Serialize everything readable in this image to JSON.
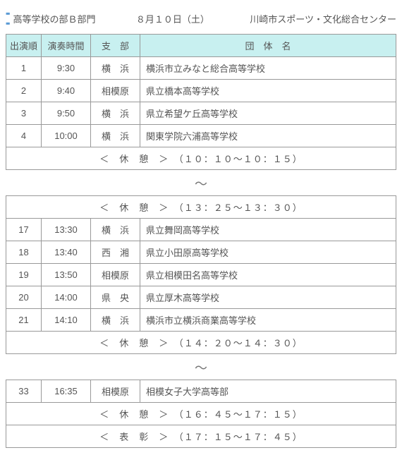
{
  "header": {
    "title": "高等学校の部Ｂ部門",
    "date": "８月１０日（土）",
    "venue": "川崎市スポーツ・文化総合センター"
  },
  "columns": {
    "order": "出演順",
    "time": "演奏時間",
    "branch": "支　部",
    "name": "団　体　名"
  },
  "block1": {
    "rows": [
      {
        "order": "1",
        "time": "9:30",
        "branch": "横　浜",
        "name": "横浜市立みなと総合高等学校"
      },
      {
        "order": "2",
        "time": "9:40",
        "branch": "相模原",
        "name": "県立橋本高等学校"
      },
      {
        "order": "3",
        "time": "9:50",
        "branch": "横　浜",
        "name": "県立希望ケ丘高等学校"
      },
      {
        "order": "4",
        "time": "10:00",
        "branch": "横　浜",
        "name": "関東学院六浦高等学校"
      }
    ],
    "break": "＜　休　憩　＞　（１０：１０～１０：１５）"
  },
  "block2": {
    "break_top": "＜　休　憩　＞　（１３：２５～１３：３０）",
    "rows": [
      {
        "order": "17",
        "time": "13:30",
        "branch": "横　浜",
        "name": "県立舞岡高等学校"
      },
      {
        "order": "18",
        "time": "13:40",
        "branch": "西　湘",
        "name": "県立小田原高等学校"
      },
      {
        "order": "19",
        "time": "13:50",
        "branch": "相模原",
        "name": "県立相模田名高等学校"
      },
      {
        "order": "20",
        "time": "14:00",
        "branch": "県　央",
        "name": "県立厚木高等学校"
      },
      {
        "order": "21",
        "time": "14:10",
        "branch": "横　浜",
        "name": "横浜市立横浜商業高等学校"
      }
    ],
    "break_bottom": "＜　休　憩　＞　（１４：２０～１４：３０）"
  },
  "block3": {
    "rows": [
      {
        "order": "33",
        "time": "16:35",
        "branch": "相模原",
        "name": "相模女子大学高等部"
      }
    ],
    "break": "＜　休　憩　＞　（１６：４５～１７：１５）",
    "award": "＜　表　彰　＞　（１７：１５～１７：４５）"
  },
  "ellipsis": "〜"
}
